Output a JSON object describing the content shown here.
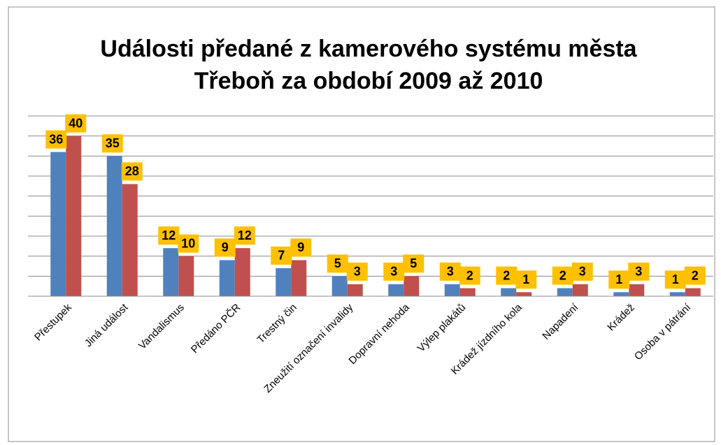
{
  "chart_data": {
    "type": "bar",
    "title": [
      "Události předané z kamerového systému města",
      "Třeboň za období 2009 až 2010"
    ],
    "categories": [
      "Přestupek",
      "Jiná událost",
      "Vandalismus",
      "Předáno PČR",
      "Trestný čin",
      "Zneužití označení invalidy",
      "Dopravní nehoda",
      "Výlep plakátů",
      "Krádež jízdního kola",
      "Napadení",
      "Krádež",
      "Osoba v pátrání"
    ],
    "series": [
      {
        "color": "#4f81bd",
        "values": [
          36,
          35,
          12,
          9,
          7,
          5,
          3,
          3,
          2,
          2,
          1,
          1
        ]
      },
      {
        "color": "#c0504d",
        "values": [
          40,
          28,
          10,
          12,
          9,
          3,
          5,
          2,
          1,
          3,
          3,
          2
        ]
      }
    ],
    "label_color": "#ffc000",
    "ylim": [
      0,
      45
    ],
    "yticks": [
      0,
      5,
      10,
      15,
      20,
      25,
      30,
      35,
      40,
      45
    ],
    "grid": true
  }
}
